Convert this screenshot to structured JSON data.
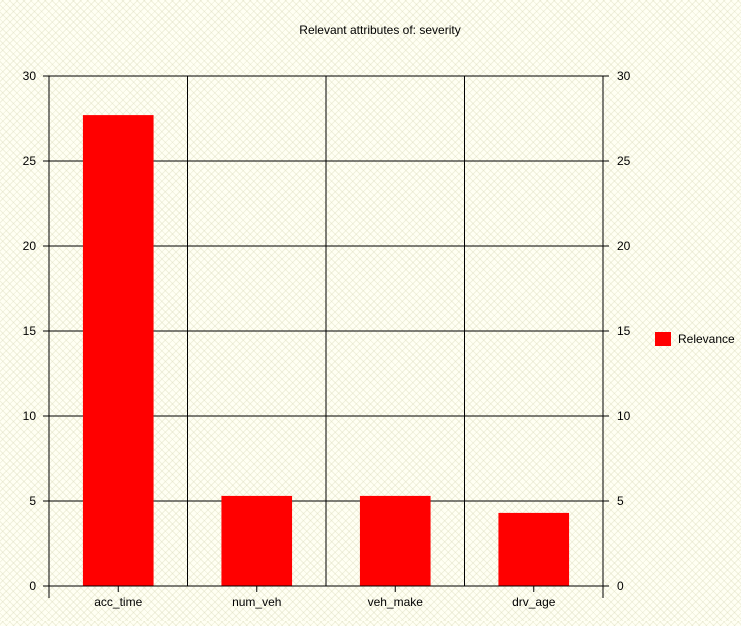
{
  "chart_data": {
    "type": "bar",
    "title": "Relevant attributes of: severity",
    "categories": [
      "acc_time",
      "num_veh",
      "veh_make",
      "drv_age"
    ],
    "series": [
      {
        "name": "Relevance",
        "values": [
          27.7,
          5.3,
          5.3,
          4.3
        ]
      }
    ],
    "xlabel": "",
    "ylabel": "",
    "ylim": [
      0,
      30
    ],
    "yticks": [
      0,
      5,
      10,
      15,
      20,
      25,
      30
    ],
    "y_axis_right_ticks": true,
    "grid": true,
    "legend": "right",
    "colors": {
      "bar": "#ff0000",
      "grid": "#000000",
      "background": "#fffff3"
    }
  }
}
